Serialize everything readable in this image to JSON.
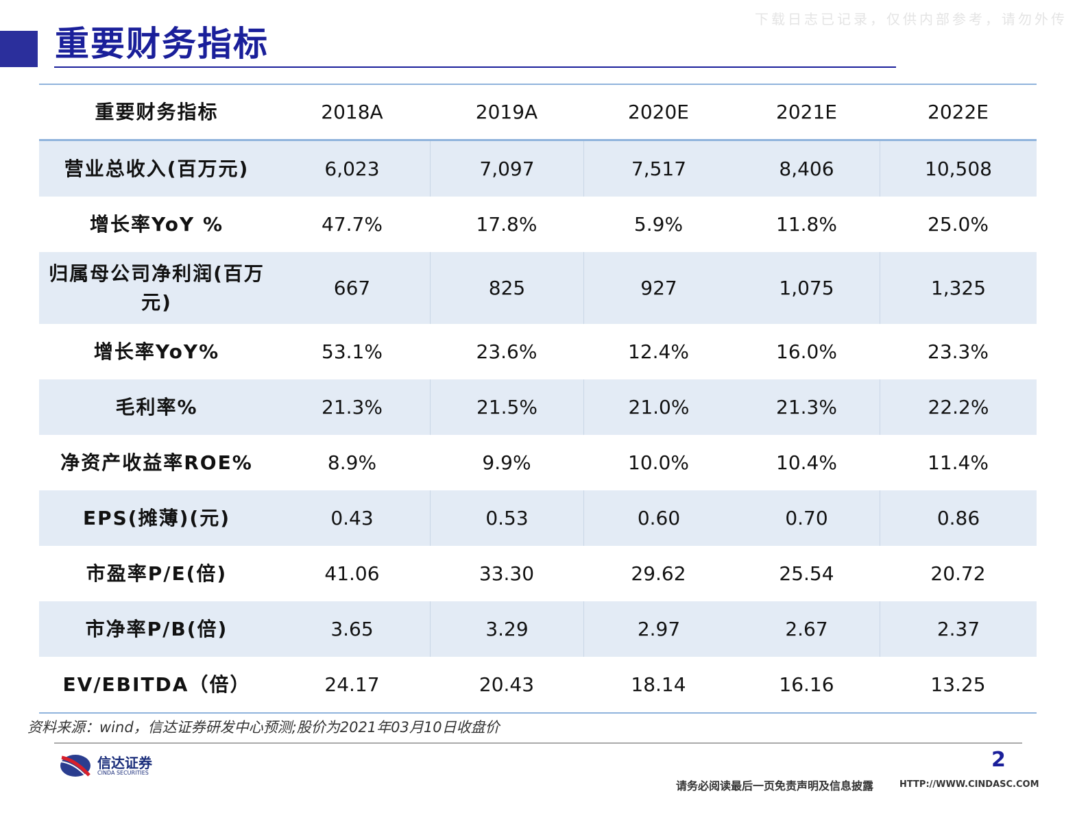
{
  "title": "重要财务指标",
  "watermark": "下载日志已记录，仅供内部参考，请勿外传",
  "table": {
    "headers": [
      "重要财务指标",
      "2018A",
      "2019A",
      "2020E",
      "2021E",
      "2022E"
    ],
    "rows": [
      [
        "营业总收入(百万元)",
        "6,023",
        "7,097",
        "7,517",
        "8,406",
        "10,508"
      ],
      [
        "增长率YoY %",
        "47.7%",
        "17.8%",
        "5.9%",
        "11.8%",
        "25.0%"
      ],
      [
        "归属母公司净利润(百万元)",
        "667",
        "825",
        "927",
        "1,075",
        "1,325"
      ],
      [
        "增长率YoY%",
        "53.1%",
        "23.6%",
        "12.4%",
        "16.0%",
        "23.3%"
      ],
      [
        "毛利率%",
        "21.3%",
        "21.5%",
        "21.0%",
        "21.3%",
        "22.2%"
      ],
      [
        "净资产收益率ROE%",
        "8.9%",
        "9.9%",
        "10.0%",
        "10.4%",
        "11.4%"
      ],
      [
        "EPS(摊薄)(元)",
        "0.43",
        "0.53",
        "0.60",
        "0.70",
        "0.86"
      ],
      [
        "市盈率P/E(倍)",
        "41.06",
        "33.30",
        "29.62",
        "25.54",
        "20.72"
      ],
      [
        "市净率P/B(倍)",
        "3.65",
        "3.29",
        "2.97",
        "2.67",
        "2.37"
      ],
      [
        "EV/EBITDA（倍）",
        "24.17",
        "20.43",
        "18.14",
        "16.16",
        "13.25"
      ]
    ]
  },
  "source": "资料来源：wind，信达证券研发中心预测;股价为2021年03月10日收盘价",
  "footer": {
    "logo_cn": "信达证券",
    "logo_en": "CINDA SECURITIES",
    "page": "2",
    "disclaimer": "请务必阅读最后一页免责声明及信息披露",
    "url": "HTTP://WWW.CINDASC.COM"
  },
  "colors": {
    "accent": "#1a1f9a",
    "row_shade": "#e3ebf5",
    "rule": "#8fb3dc"
  }
}
